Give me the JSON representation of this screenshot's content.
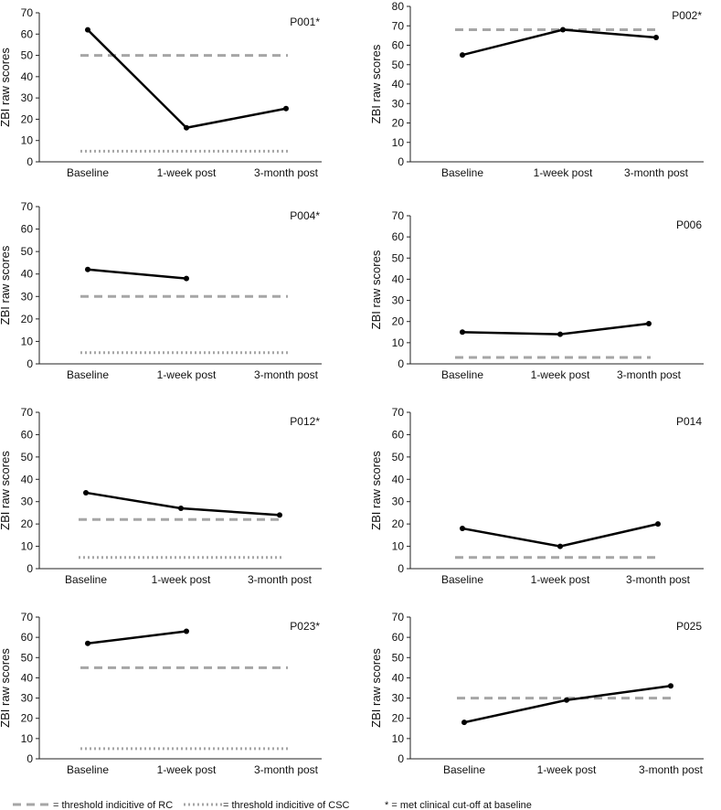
{
  "chart_data": [
    {
      "type": "line",
      "title": "P001*",
      "categories": [
        "Baseline",
        "1-week post",
        "3-month post"
      ],
      "ylabel": "ZBI raw scores",
      "ylim": [
        0,
        70
      ],
      "yticks": [
        0,
        10,
        20,
        30,
        40,
        50,
        60,
        70
      ],
      "series": [
        {
          "name": "ZBI raw score",
          "values": [
            62,
            16,
            25
          ]
        }
      ],
      "rc_threshold": 50,
      "csc_threshold": 5
    },
    {
      "type": "line",
      "title": "P002*",
      "categories": [
        "Baseline",
        "1-week post",
        "3-month post"
      ],
      "ylabel": "ZBI raw scores",
      "ylim": [
        0,
        80
      ],
      "yticks": [
        0,
        10,
        20,
        30,
        40,
        50,
        60,
        70,
        80
      ],
      "series": [
        {
          "name": "ZBI raw score",
          "values": [
            55,
            68,
            64
          ]
        }
      ],
      "rc_threshold": 68,
      "csc_threshold": null
    },
    {
      "type": "line",
      "title": "P004*",
      "categories": [
        "Baseline",
        "1-week post",
        "3-month post"
      ],
      "ylabel": "ZBI raw scores",
      "ylim": [
        0,
        70
      ],
      "yticks": [
        0,
        10,
        20,
        30,
        40,
        50,
        60,
        70
      ],
      "series": [
        {
          "name": "ZBI raw score",
          "values": [
            42,
            38,
            null
          ]
        }
      ],
      "rc_threshold": 30,
      "csc_threshold": 5
    },
    {
      "type": "line",
      "title": "P006",
      "categories": [
        "Baseline",
        "1-week post",
        "3-month post"
      ],
      "ylabel": "ZBI raw scores",
      "ylim": [
        0,
        70
      ],
      "yticks": [
        0,
        10,
        20,
        30,
        40,
        50,
        60,
        70
      ],
      "series": [
        {
          "name": "ZBI raw score",
          "values": [
            15,
            14,
            19
          ]
        }
      ],
      "rc_threshold": 3,
      "csc_threshold": null
    },
    {
      "type": "line",
      "title": "P012*",
      "categories": [
        "Baseline",
        "1-week post",
        "3-month post"
      ],
      "ylabel": "ZBI raw scores",
      "ylim": [
        0,
        70
      ],
      "yticks": [
        0,
        10,
        20,
        30,
        40,
        50,
        60,
        70
      ],
      "series": [
        {
          "name": "ZBI raw score",
          "values": [
            34,
            27,
            24
          ]
        }
      ],
      "rc_threshold": 22,
      "csc_threshold": 5
    },
    {
      "type": "line",
      "title": "P014",
      "categories": [
        "Baseline",
        "1-week post",
        "3-month post"
      ],
      "ylabel": "ZBI raw scores",
      "ylim": [
        0,
        70
      ],
      "yticks": [
        0,
        10,
        20,
        30,
        40,
        50,
        60,
        70
      ],
      "series": [
        {
          "name": "ZBI raw score",
          "values": [
            18,
            10,
            20
          ]
        }
      ],
      "rc_threshold": 5,
      "csc_threshold": null
    },
    {
      "type": "line",
      "title": "P023*",
      "categories": [
        "Baseline",
        "1-week post",
        "3-month post"
      ],
      "ylabel": "ZBI raw scores",
      "ylim": [
        0,
        70
      ],
      "yticks": [
        0,
        10,
        20,
        30,
        40,
        50,
        60,
        70
      ],
      "series": [
        {
          "name": "ZBI raw score",
          "values": [
            57,
            63,
            null
          ]
        }
      ],
      "rc_threshold": 45,
      "csc_threshold": 5
    },
    {
      "type": "line",
      "title": "P025",
      "categories": [
        "Baseline",
        "1-week post",
        "3-month post"
      ],
      "ylabel": "ZBI raw scores",
      "ylim": [
        0,
        70
      ],
      "yticks": [
        0,
        10,
        20,
        30,
        40,
        50,
        60,
        70
      ],
      "series": [
        {
          "name": "ZBI raw score",
          "values": [
            18,
            29,
            36
          ]
        }
      ],
      "rc_threshold": 30,
      "csc_threshold": null
    }
  ],
  "legend": {
    "rc": "= threshold indicitive of RC",
    "csc": "= threshold indicitive of CSC",
    "note": "* = met clinical cut-off at baseline"
  },
  "colors": {
    "series": "#000000",
    "rc_line": "#a6a6a6",
    "csc_line": "#a6a6a6",
    "axis": "#222222",
    "text": "#111111"
  }
}
